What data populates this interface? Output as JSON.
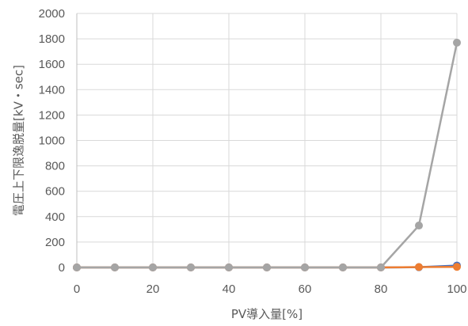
{
  "chart_data": {
    "type": "line",
    "title": "",
    "xlabel": "PV導入量[%]",
    "ylabel": "電圧上下限逸脱量[kV・sec]",
    "x": [
      0,
      10,
      20,
      30,
      40,
      50,
      60,
      70,
      80,
      90,
      100
    ],
    "xlim": [
      0,
      100
    ],
    "ylim": [
      0,
      2000
    ],
    "xticks": [
      0,
      20,
      40,
      60,
      80,
      100
    ],
    "yticks": [
      0,
      200,
      400,
      600,
      800,
      1000,
      1200,
      1400,
      1600,
      1800,
      2000
    ],
    "grid": "vertical and horizontal",
    "legend": "none",
    "series": [
      {
        "color": "#4472c4",
        "values": [
          0,
          0,
          0,
          0,
          0,
          0,
          0,
          0,
          0,
          2,
          15
        ]
      },
      {
        "color": "#ed7d31",
        "values": [
          0,
          0,
          0,
          0,
          0,
          0,
          0,
          0,
          0,
          3,
          5
        ]
      },
      {
        "color": "#a5a5a5",
        "values": [
          0,
          0,
          0,
          0,
          0,
          0,
          0,
          0,
          0,
          330,
          1770
        ]
      }
    ]
  }
}
